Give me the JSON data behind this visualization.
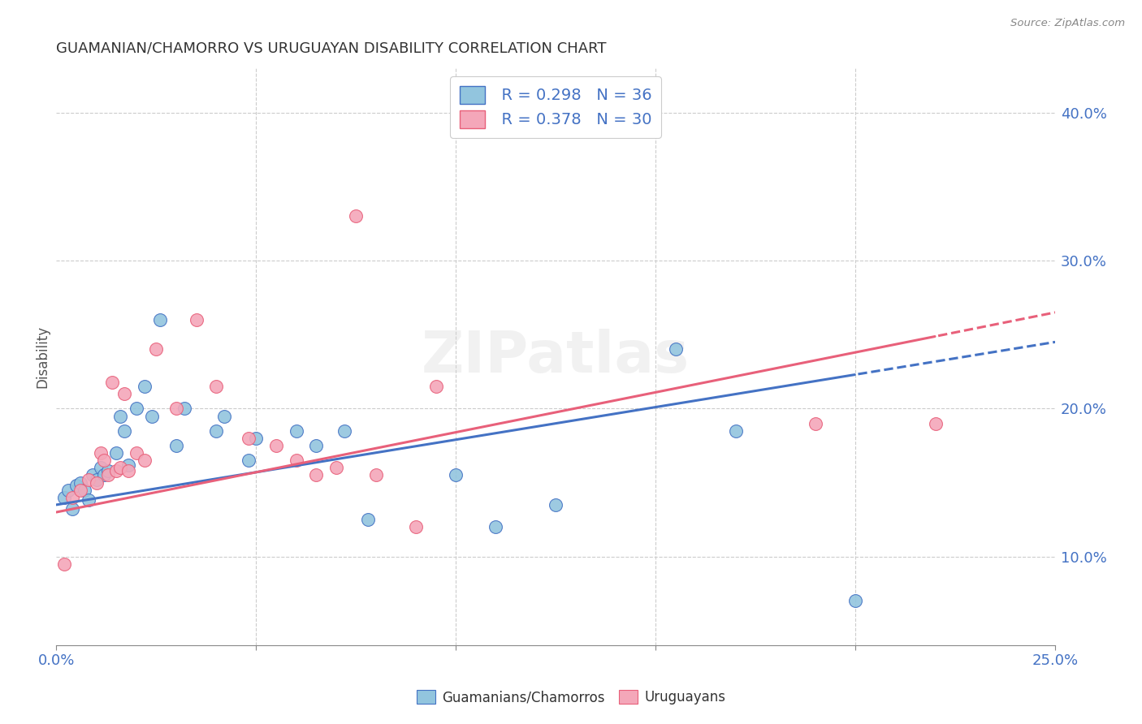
{
  "title": "GUAMANIAN/CHAMORRO VS URUGUAYAN DISABILITY CORRELATION CHART",
  "source": "Source: ZipAtlas.com",
  "ylabel": "Disability",
  "right_yticks": [
    "40.0%",
    "30.0%",
    "20.0%",
    "10.0%"
  ],
  "right_ytick_vals": [
    0.4,
    0.3,
    0.2,
    0.1
  ],
  "xlim": [
    0.0,
    0.25
  ],
  "ylim": [
    0.04,
    0.43
  ],
  "legend_blue_R": "R = 0.298",
  "legend_blue_N": "N = 36",
  "legend_pink_R": "R = 0.378",
  "legend_pink_N": "N = 30",
  "blue_color": "#92C5DE",
  "pink_color": "#F4A7B9",
  "blue_line_color": "#4472C4",
  "pink_line_color": "#E8607A",
  "watermark": "ZIPatlas",
  "blue_scatter_x": [
    0.002,
    0.003,
    0.004,
    0.005,
    0.006,
    0.007,
    0.008,
    0.009,
    0.01,
    0.011,
    0.012,
    0.013,
    0.015,
    0.016,
    0.017,
    0.018,
    0.02,
    0.022,
    0.024,
    0.026,
    0.03,
    0.032,
    0.04,
    0.042,
    0.048,
    0.05,
    0.06,
    0.065,
    0.072,
    0.078,
    0.1,
    0.11,
    0.125,
    0.155,
    0.17,
    0.2
  ],
  "blue_scatter_y": [
    0.14,
    0.145,
    0.132,
    0.148,
    0.15,
    0.145,
    0.138,
    0.155,
    0.152,
    0.16,
    0.155,
    0.158,
    0.17,
    0.195,
    0.185,
    0.162,
    0.2,
    0.215,
    0.195,
    0.26,
    0.175,
    0.2,
    0.185,
    0.195,
    0.165,
    0.18,
    0.185,
    0.175,
    0.185,
    0.125,
    0.155,
    0.12,
    0.135,
    0.24,
    0.185,
    0.07
  ],
  "pink_scatter_x": [
    0.002,
    0.004,
    0.006,
    0.008,
    0.01,
    0.011,
    0.012,
    0.013,
    0.014,
    0.015,
    0.016,
    0.017,
    0.018,
    0.02,
    0.022,
    0.025,
    0.03,
    0.035,
    0.04,
    0.048,
    0.055,
    0.06,
    0.065,
    0.07,
    0.075,
    0.08,
    0.09,
    0.095,
    0.19,
    0.22
  ],
  "pink_scatter_y": [
    0.095,
    0.14,
    0.145,
    0.152,
    0.15,
    0.17,
    0.165,
    0.155,
    0.218,
    0.158,
    0.16,
    0.21,
    0.158,
    0.17,
    0.165,
    0.24,
    0.2,
    0.26,
    0.215,
    0.18,
    0.175,
    0.165,
    0.155,
    0.16,
    0.33,
    0.155,
    0.12,
    0.215,
    0.19,
    0.19
  ],
  "blue_line_x0": 0.0,
  "blue_line_y0": 0.135,
  "blue_line_x1": 0.25,
  "blue_line_y1": 0.245,
  "pink_line_x0": 0.0,
  "pink_line_y0": 0.13,
  "pink_line_x1": 0.25,
  "pink_line_y1": 0.265
}
